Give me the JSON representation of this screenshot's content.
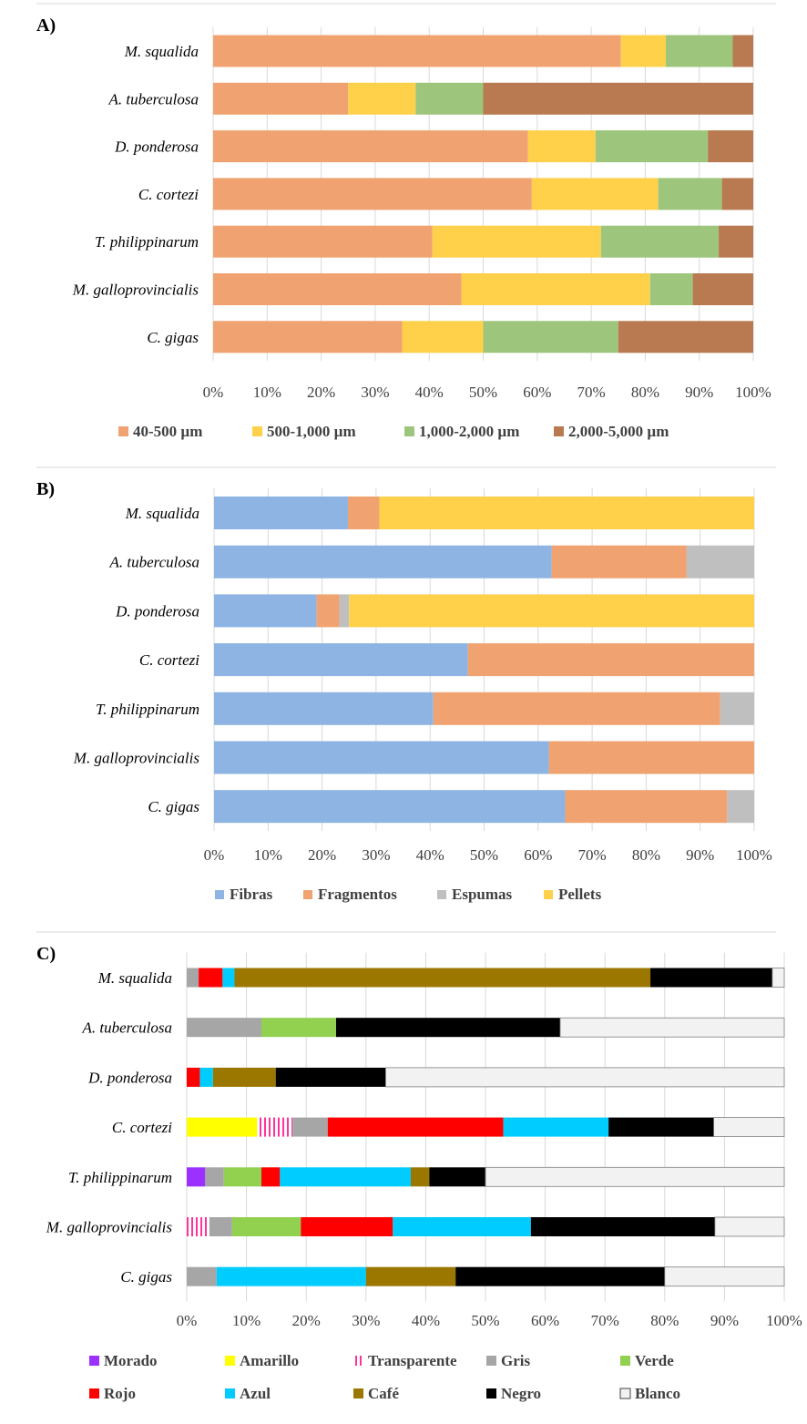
{
  "chart_data": [
    {
      "panel": "A)",
      "type": "bar",
      "orientation": "horizontal",
      "stacked": "percent",
      "categories": [
        "M. squalida",
        "A. tuberculosa",
        "D. ponderosa",
        "C. cortezi",
        "T. philippinarum",
        "M. galloprovincialis",
        "C. gigas"
      ],
      "series": [
        {
          "name": "40-500 µm",
          "color": "#f0a370",
          "values": [
            75.5,
            25,
            58.3,
            59,
            40.6,
            46,
            35
          ]
        },
        {
          "name": "500-1,000 µm",
          "color": "#ffd04a",
          "values": [
            8.3,
            12.5,
            12.5,
            23.4,
            31.2,
            34.9,
            15
          ]
        },
        {
          "name": "1,000-2,000 µm",
          "color": "#9dc67c",
          "values": [
            12.4,
            12.5,
            20.8,
            11.8,
            21.8,
            7.9,
            25
          ]
        },
        {
          "name": "2,000-5,000 µm",
          "color": "#b97a52",
          "values": [
            3.8,
            50,
            8.4,
            5.8,
            6.4,
            11.2,
            25
          ]
        }
      ],
      "xticks": [
        "0%",
        "10%",
        "20%",
        "30%",
        "40%",
        "50%",
        "60%",
        "70%",
        "80%",
        "90%",
        "100%"
      ],
      "xlim": [
        0,
        100
      ],
      "grid": true,
      "legend": "bottom"
    },
    {
      "panel": "B)",
      "type": "bar",
      "orientation": "horizontal",
      "stacked": "percent",
      "categories": [
        "M. squalida",
        "A. tuberculosa",
        "D. ponderosa",
        "C. cortezi",
        "T. philippinarum",
        "M. galloprovincialis",
        "C. gigas"
      ],
      "series": [
        {
          "name": "Fibras",
          "color": "#8db4e2",
          "values": [
            24.8,
            62.5,
            19,
            47,
            40.6,
            62,
            65
          ]
        },
        {
          "name": "Fragmentos",
          "color": "#f0a370",
          "values": [
            5.8,
            25,
            4.2,
            53,
            53.1,
            38,
            30
          ]
        },
        {
          "name": "Espumas",
          "color": "#bfbfbf",
          "values": [
            0,
            12.5,
            1.8,
            0,
            6.3,
            0,
            5
          ]
        },
        {
          "name": "Pellets",
          "color": "#ffd04a",
          "values": [
            69.4,
            0,
            75,
            0,
            0,
            0,
            0
          ]
        }
      ],
      "xticks": [
        "0%",
        "10%",
        "20%",
        "30%",
        "40%",
        "50%",
        "60%",
        "70%",
        "80%",
        "90%",
        "100%"
      ],
      "xlim": [
        0,
        100
      ],
      "grid": true,
      "legend": "bottom"
    },
    {
      "panel": "C)",
      "type": "bar",
      "orientation": "horizontal",
      "stacked": "percent",
      "categories": [
        "M. squalida",
        "A. tuberculosa",
        "D. ponderosa",
        "C. cortezi",
        "T. philippinarum",
        "M. galloprovincialis",
        "C. gigas"
      ],
      "series": [
        {
          "name": "Morado",
          "color": "#9b30ff",
          "values": [
            0,
            0,
            0,
            0,
            3.1,
            0,
            0
          ]
        },
        {
          "name": "Amarillo",
          "color": "#ffff00",
          "values": [
            0,
            0,
            0,
            11.8,
            0,
            0,
            0
          ]
        },
        {
          "name": "Transparente",
          "color": "#ff3399",
          "pattern": "stripes",
          "values": [
            0,
            0,
            0,
            5.9,
            0,
            3.8,
            0
          ]
        },
        {
          "name": "Gris",
          "color": "#a6a6a6",
          "values": [
            2,
            12.5,
            0,
            5.9,
            3.1,
            3.8,
            5
          ]
        },
        {
          "name": "Verde",
          "color": "#92d050",
          "values": [
            0,
            12.5,
            0,
            0,
            6.3,
            11.5,
            0
          ]
        },
        {
          "name": "Rojo",
          "color": "#ff0000",
          "values": [
            4,
            0,
            2.2,
            29.4,
            3.1,
            15.4,
            0
          ]
        },
        {
          "name": "Azul",
          "color": "#00ccff",
          "values": [
            2,
            0,
            2.2,
            17.6,
            21.9,
            23.1,
            25
          ]
        },
        {
          "name": "Café",
          "color": "#9c7700",
          "values": [
            69.6,
            0,
            10.5,
            0,
            3.1,
            0,
            15
          ]
        },
        {
          "name": "Negro",
          "color": "#000000",
          "values": [
            20.4,
            37.5,
            18.4,
            17.6,
            9.4,
            30.8,
            35
          ]
        },
        {
          "name": "Blanco",
          "color": "#f2f2f2",
          "values": [
            2,
            37.5,
            66.7,
            11.8,
            50,
            11.6,
            20
          ]
        }
      ],
      "xticks": [
        "0%",
        "10%",
        "20%",
        "30%",
        "40%",
        "50%",
        "60%",
        "70%",
        "80%",
        "90%",
        "100%"
      ],
      "xlim": [
        0,
        100
      ],
      "grid": true,
      "legend": "bottom"
    }
  ]
}
